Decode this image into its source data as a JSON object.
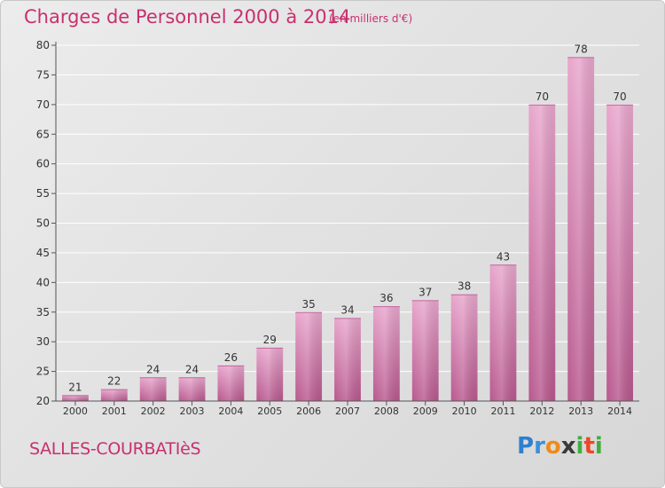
{
  "header": {
    "title": "Charges de Personnel 2000 à 2014",
    "unit": "(en milliers d'€)"
  },
  "footer": {
    "commune": "SALLES-COURBATIèS",
    "logo_letters": [
      "P",
      "r",
      "o",
      "x",
      "i",
      "t",
      "i"
    ],
    "logo_colors": [
      "#2f7fd0",
      "#3a8fd8",
      "#f08a1a",
      "#3a3a3a",
      "#3fae3f",
      "#e84a2a",
      "#3fae3f"
    ]
  },
  "chart_data": {
    "type": "bar",
    "title": "Charges de Personnel 2000 à 2014",
    "subtitle": "(en milliers d'€)",
    "xlabel": "",
    "ylabel": "",
    "categories": [
      "2000",
      "2001",
      "2002",
      "2003",
      "2004",
      "2005",
      "2006",
      "2007",
      "2008",
      "2009",
      "2010",
      "2011",
      "2012",
      "2013",
      "2014"
    ],
    "values": [
      21,
      22,
      24,
      24,
      26,
      29,
      35,
      34,
      36,
      37,
      38,
      43,
      70,
      78,
      70
    ],
    "ylim": [
      20,
      80
    ],
    "yticks": [
      20,
      25,
      30,
      35,
      40,
      45,
      50,
      55,
      60,
      65,
      70,
      75,
      80
    ],
    "grid": true,
    "colors": {
      "bar_light": "#e8a6cc",
      "bar_dark": "#b8588e",
      "grid": "#ffffff",
      "axis": "#555555",
      "text": "#333333"
    }
  }
}
